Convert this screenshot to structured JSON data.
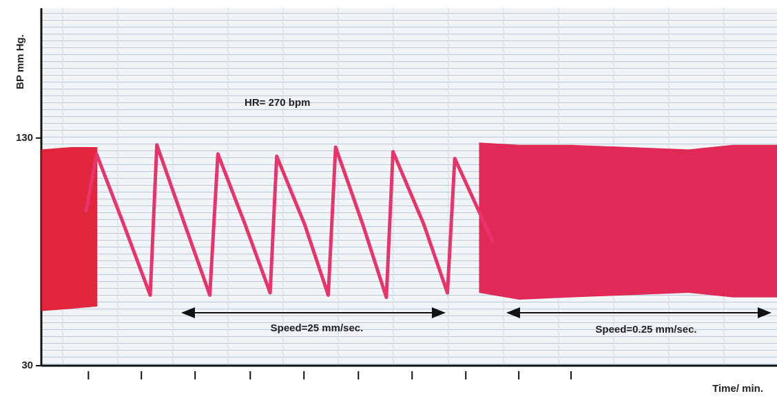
{
  "chart_data": {
    "type": "line",
    "ylabel": "BP mm Hg.",
    "xlabel": "Time/ min.",
    "annotations": [
      "HR= 270 bpm",
      "Speed=25 mm/sec.",
      "Speed=0.25 mm/sec."
    ],
    "ylim": [
      30,
      187
    ],
    "yticks": [
      30,
      130
    ],
    "xlim": [
      0,
      100
    ],
    "xticks": [
      6.4,
      13.6,
      20.9,
      28.4,
      35.7,
      43.1,
      50.4,
      57.7,
      64.9,
      72.0
    ],
    "series": [
      {
        "color": "#e8336b",
        "x": [
          6.1,
          7.5,
          11.2,
          14.8,
          15.7,
          19.5,
          22.9,
          24.0,
          27.7,
          31.1,
          32.0,
          35.8,
          39.0,
          40.0,
          43.7,
          46.9,
          47.8,
          52.0,
          55.2,
          56.2,
          61.3
        ],
        "values": [
          98,
          123,
          92,
          61,
          127,
          92,
          61,
          123,
          92,
          62,
          122,
          92,
          61,
          126,
          92,
          60,
          124,
          92,
          62,
          121,
          85
        ]
      }
    ],
    "bands": [
      {
        "color": "#e0142c",
        "x": [
          0,
          4,
          7.6
        ],
        "upper": [
          125,
          126,
          126
        ],
        "lower": [
          54,
          55,
          56
        ]
      },
      {
        "color": "#e0184a",
        "x": [
          59.5,
          65,
          72,
          80,
          88,
          94,
          100
        ],
        "upper": [
          128,
          127,
          127,
          126,
          125,
          127,
          127
        ],
        "lower": [
          62,
          59,
          60,
          61,
          62,
          60,
          60
        ]
      }
    ]
  }
}
